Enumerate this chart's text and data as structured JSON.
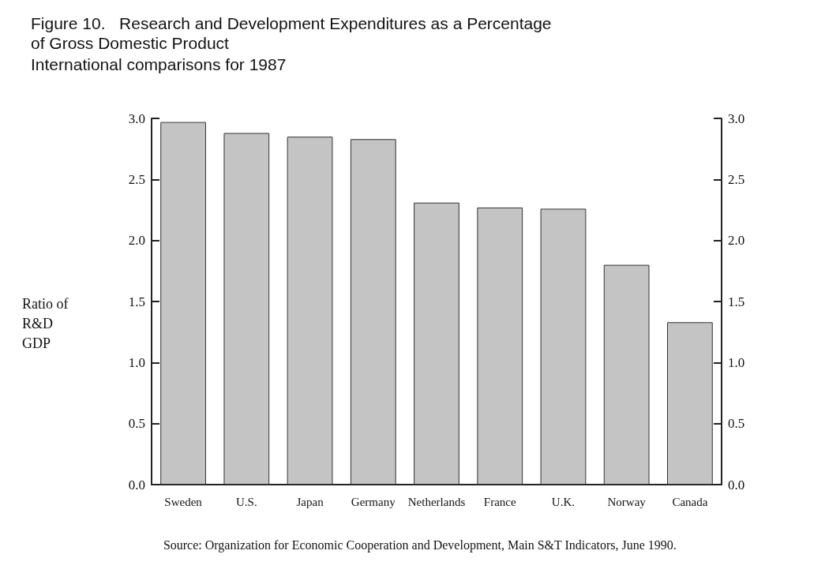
{
  "chart_data": {
    "type": "bar",
    "title": "Figure 10.   Research and Development Expenditures as a Percentage\nof Gross Domestic Product",
    "subtitle": "International comparisons for 1987",
    "ylabel": "Ratio of\nR&D\nGDP",
    "categories": [
      "Sweden",
      "U.S.",
      "Japan",
      "Germany",
      "Netherlands",
      "France",
      "U.K.",
      "Norway",
      "Canada"
    ],
    "values": [
      2.97,
      2.88,
      2.85,
      2.83,
      2.31,
      2.27,
      2.26,
      1.8,
      1.33
    ],
    "color": "#c4c4c4",
    "ylim": [
      0,
      3
    ],
    "yticks": [
      {
        "value": 0,
        "label": "0.0"
      },
      0.5,
      {
        "value": 1,
        "label": "1.0"
      },
      1.5,
      {
        "value": 2,
        "label": "2.0"
      },
      2.5,
      {
        "value": 3,
        "label": "3.0"
      }
    ],
    "y2lim": [
      0,
      3
    ],
    "y2ticks": [
      {
        "value": 0,
        "label": "0.0"
      },
      0.5,
      {
        "value": 1,
        "label": "1.0"
      },
      1.5,
      {
        "value": 2,
        "label": "2.0"
      },
      2.5,
      {
        "value": 3,
        "label": "3.0"
      }
    ],
    "grid": false,
    "annotations": [
      "Source: Organization for Economic Cooperation and Development, Main S&T Indicators, June 1990."
    ]
  }
}
